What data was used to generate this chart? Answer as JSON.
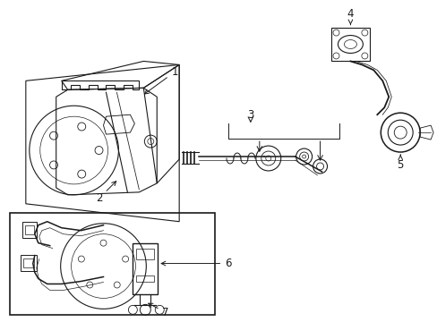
{
  "background_color": "#ffffff",
  "line_color": "#1a1a1a",
  "fig_width": 4.89,
  "fig_height": 3.6,
  "dpi": 100,
  "label_fontsize": 8.5,
  "lw": 0.8
}
